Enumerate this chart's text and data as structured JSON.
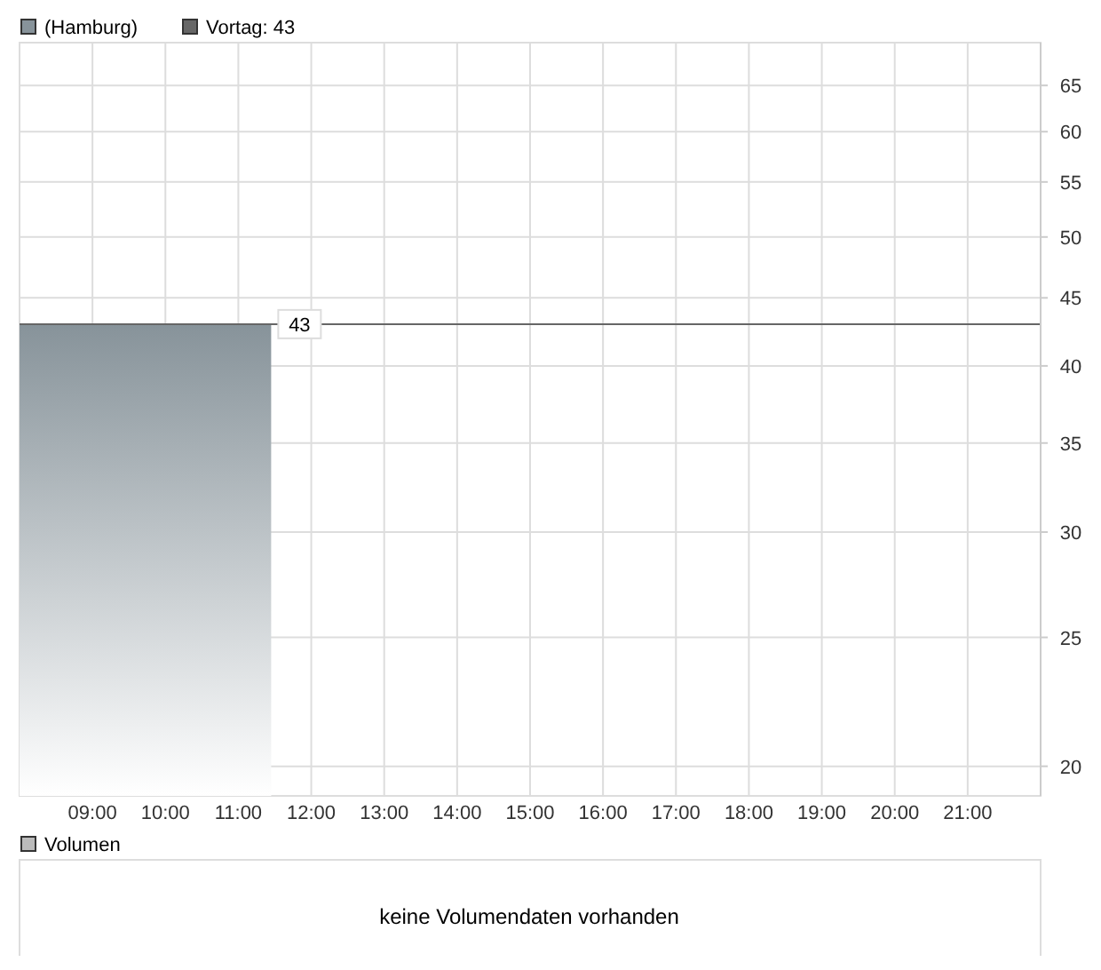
{
  "chart_data": [
    {
      "type": "area",
      "x": [
        8,
        11.45
      ],
      "series": [
        {
          "name": "(Hamburg)",
          "color": "#87939a",
          "values": [
            43,
            43
          ]
        }
      ],
      "xlim": [
        8,
        22
      ],
      "xticks": [
        {
          "value": 9,
          "label": "09:00"
        },
        {
          "value": 10,
          "label": "10:00"
        },
        {
          "value": 11,
          "label": "11:00"
        },
        {
          "value": 12,
          "label": "12:00"
        },
        {
          "value": 13,
          "label": "13:00"
        },
        {
          "value": 14,
          "label": "14:00"
        },
        {
          "value": 15,
          "label": "15:00"
        },
        {
          "value": 16,
          "label": "16:00"
        },
        {
          "value": 17,
          "label": "17:00"
        },
        {
          "value": 18,
          "label": "18:00"
        },
        {
          "value": 19,
          "label": "19:00"
        },
        {
          "value": 20,
          "label": "20:00"
        },
        {
          "value": 21,
          "label": "21:00"
        }
      ],
      "ylim": [
        19,
        70
      ],
      "yticks": [
        20,
        25,
        30,
        35,
        40,
        45,
        50,
        55,
        60,
        65
      ],
      "log": true,
      "grid": true,
      "legend": "top left",
      "ref_lines": [
        {
          "axis": "y",
          "value": 43,
          "label": "Vortag: 43",
          "color": "#666666"
        }
      ],
      "annotations": [
        {
          "text": "43",
          "x": 11.45,
          "y": 43
        }
      ]
    },
    {
      "type": "other",
      "title": "Volumen",
      "annotations": [
        "keine Volumendaten vorhanden"
      ]
    }
  ]
}
